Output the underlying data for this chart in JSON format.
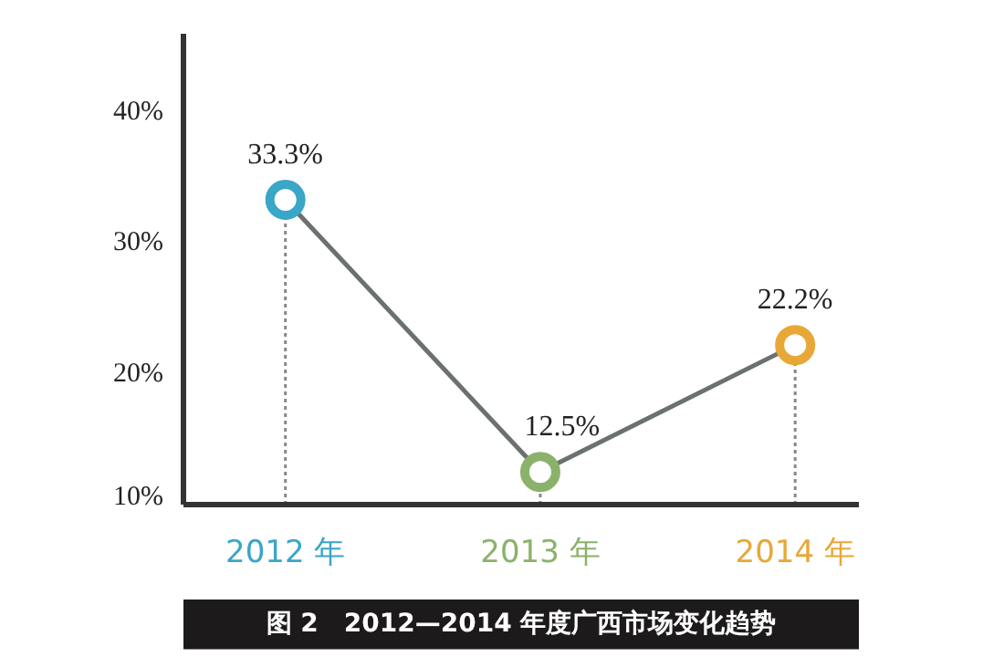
{
  "chart_data": {
    "type": "line",
    "title": "图 2　2012—2014 年度广西市场变化趋势",
    "categories": [
      "2012 年",
      "2013 年",
      "2014 年"
    ],
    "series": [
      {
        "values": [
          33.3,
          12.5,
          22.2
        ],
        "colors": [
          "#3aa6c8",
          "#8bb26a",
          "#e8a838"
        ],
        "color": "#6b7070",
        "value_labels": [
          "33.3%",
          "12.5%",
          "22.2%"
        ]
      }
    ],
    "ylim": [
      10,
      46
    ],
    "yticks": [
      {
        "value": 10,
        "label": "10%"
      },
      {
        "value": 20,
        "label": "20%"
      },
      {
        "value": 30,
        "label": "30%"
      },
      {
        "value": 40,
        "label": "40%"
      }
    ],
    "grid": false,
    "legend": false,
    "marker": "circle",
    "line_style": "solid"
  }
}
